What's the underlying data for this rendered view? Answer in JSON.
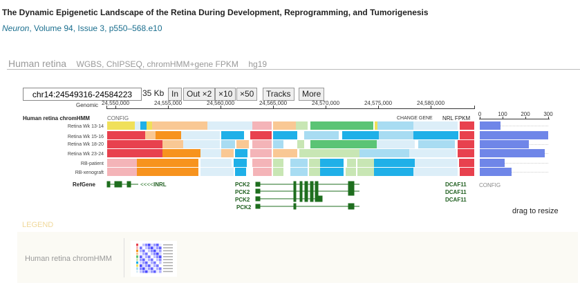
{
  "paper": {
    "title": "The Dynamic Epigenetic Landscape of the Retina During Development, Reprogramming, and Tumorigenesis",
    "journal": "Neuron",
    "citation_rest": ", Volume 94, Issue 3, p550–568.e10"
  },
  "section": {
    "title": "Human retina",
    "subtitle": "WGBS, ChIPSEQ, chromHMM+gene FPKM",
    "genome": "hg19"
  },
  "toolbar": {
    "coord_value": "chr14:24549316-24584223",
    "span": "35 Kb",
    "buttons": [
      "In",
      "Out ×2",
      "×10",
      "×50",
      "Tracks",
      "More"
    ]
  },
  "ruler": {
    "label": "Genomic",
    "ticks": [
      "24,550,000",
      "24,555,000",
      "24,560,000",
      "24,565,000",
      "24,570,000",
      "24,575,000",
      "24,580,000"
    ]
  },
  "track": {
    "name": "Human retina chromHMM",
    "config": "CONFIG",
    "change_gene": "CHANGE GENE",
    "fpkm_label": "NRL FPKM",
    "rows": [
      "Retina Wk 13-14",
      "Retina Wk 15-16",
      "Retina Wk 18-20",
      "Retina Wk 23-24",
      "RB-patient",
      "RB-xenograft"
    ],
    "fpkm_axis": {
      "ticks": [
        "0",
        "100",
        "200",
        "300"
      ],
      "max": 300
    },
    "fpkm_values": [
      90,
      300,
      215,
      285,
      110,
      140
    ],
    "colors": {
      "active_promoter": "#e8414e",
      "weak_promoter": "#f4b4b8",
      "strong_enhancer": "#f7931e",
      "weak_enhancer": "#f9c894",
      "transcription": "#5bc475",
      "weak_transcription": "#c8e6b4",
      "repressed": "#1fb0e8",
      "weak_repressed": "#a8dcf2",
      "heterochromatin": "#dceef8",
      "bivalent": "#f0e05a",
      "fpkm_bar": "#6f86e8"
    }
  },
  "refgene": {
    "label": "RefGene",
    "config": "CONFIG",
    "genes": [
      "INRL",
      "PCK2",
      "PCK2",
      "PCK2",
      "PCK2",
      "DCAF11",
      "DCAF11",
      "DCAF11"
    ]
  },
  "ui": {
    "drag_resize": "drag to resize"
  },
  "legend": {
    "label": "LEGEND",
    "track_name": "Human retina chromHMM"
  }
}
